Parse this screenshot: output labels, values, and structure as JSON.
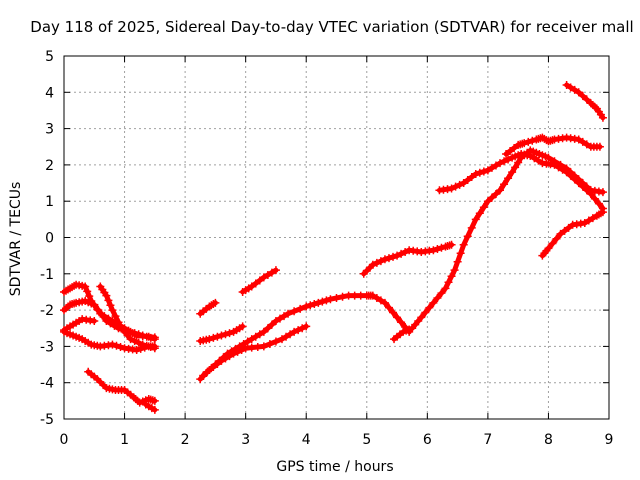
{
  "chart_data": {
    "type": "scatter",
    "title": "Day 118 of 2025, Sidereal Day-to-day VTEC variation (SDTVAR) for receiver mall",
    "xlabel": "GPS time / hours",
    "ylabel": "SDTVAR / TECUs",
    "xlim": [
      0,
      9
    ],
    "ylim": [
      -5,
      5
    ],
    "x_ticks": [
      "0",
      "1",
      "2",
      "3",
      "4",
      "5",
      "6",
      "7",
      "8",
      "9"
    ],
    "y_ticks": [
      "-5",
      "-4",
      "-3",
      "-2",
      "-1",
      "0",
      "1",
      "2",
      "3",
      "4",
      "5"
    ],
    "grid": true,
    "marker": "plus",
    "color": "#ff0000",
    "series": [
      {
        "points": [
          [
            0.0,
            -1.5
          ],
          [
            0.1,
            -1.4
          ],
          [
            0.2,
            -1.3
          ],
          [
            0.35,
            -1.35
          ],
          [
            0.45,
            -1.75
          ],
          [
            0.6,
            -2.1
          ],
          [
            0.8,
            -2.3
          ],
          [
            1.0,
            -2.5
          ],
          [
            1.2,
            -2.7
          ],
          [
            1.5,
            -2.75
          ]
        ]
      },
      {
        "points": [
          [
            0.0,
            -2.0
          ],
          [
            0.1,
            -1.85
          ],
          [
            0.2,
            -1.8
          ],
          [
            0.35,
            -1.75
          ],
          [
            0.5,
            -1.85
          ],
          [
            0.7,
            -2.3
          ],
          [
            0.9,
            -2.5
          ],
          [
            1.1,
            -2.6
          ],
          [
            1.3,
            -2.7
          ],
          [
            1.5,
            -2.8
          ]
        ]
      },
      {
        "points": [
          [
            0.0,
            -2.55
          ],
          [
            0.15,
            -2.4
          ],
          [
            0.3,
            -2.25
          ],
          [
            0.5,
            -2.3
          ]
        ]
      },
      {
        "points": [
          [
            0.0,
            -2.6
          ],
          [
            0.15,
            -2.7
          ],
          [
            0.3,
            -2.8
          ],
          [
            0.45,
            -2.95
          ],
          [
            0.6,
            -3.0
          ],
          [
            0.8,
            -2.95
          ],
          [
            1.0,
            -3.05
          ],
          [
            1.2,
            -3.1
          ],
          [
            1.4,
            -3.0
          ],
          [
            1.5,
            -3.0
          ]
        ]
      },
      {
        "points": [
          [
            0.6,
            -1.35
          ],
          [
            0.7,
            -1.6
          ],
          [
            0.8,
            -2.0
          ],
          [
            0.95,
            -2.5
          ],
          [
            1.1,
            -2.8
          ],
          [
            1.3,
            -2.95
          ],
          [
            1.5,
            -3.05
          ]
        ]
      },
      {
        "points": [
          [
            0.4,
            -3.7
          ],
          [
            0.55,
            -3.9
          ],
          [
            0.7,
            -4.15
          ],
          [
            0.85,
            -4.2
          ],
          [
            1.0,
            -4.2
          ],
          [
            1.15,
            -4.4
          ],
          [
            1.25,
            -4.55
          ],
          [
            1.4,
            -4.45
          ],
          [
            1.5,
            -4.5
          ]
        ]
      },
      {
        "points": [
          [
            1.35,
            -4.6
          ],
          [
            1.5,
            -4.75
          ]
        ]
      },
      {
        "points": [
          [
            2.25,
            -2.1
          ],
          [
            2.4,
            -1.9
          ],
          [
            2.5,
            -1.8
          ]
        ]
      },
      {
        "points": [
          [
            2.25,
            -2.85
          ],
          [
            2.4,
            -2.8
          ],
          [
            2.6,
            -2.7
          ],
          [
            2.8,
            -2.6
          ],
          [
            2.95,
            -2.45
          ]
        ]
      },
      {
        "points": [
          [
            2.25,
            -3.9
          ],
          [
            2.4,
            -3.65
          ],
          [
            2.6,
            -3.4
          ],
          [
            2.8,
            -3.2
          ],
          [
            3.0,
            -3.05
          ],
          [
            3.3,
            -3.0
          ],
          [
            3.6,
            -2.8
          ],
          [
            3.8,
            -2.6
          ],
          [
            4.0,
            -2.45
          ]
        ]
      },
      {
        "points": [
          [
            2.3,
            -3.8
          ],
          [
            2.5,
            -3.5
          ],
          [
            2.7,
            -3.2
          ],
          [
            2.9,
            -3.0
          ],
          [
            3.1,
            -2.8
          ],
          [
            3.3,
            -2.6
          ],
          [
            3.5,
            -2.3
          ],
          [
            3.7,
            -2.1
          ],
          [
            4.0,
            -1.9
          ],
          [
            4.2,
            -1.8
          ],
          [
            4.4,
            -1.7
          ],
          [
            4.7,
            -1.6
          ],
          [
            5.0,
            -1.6
          ],
          [
            5.1,
            -1.6
          ],
          [
            5.3,
            -1.8
          ],
          [
            5.5,
            -2.2
          ],
          [
            5.7,
            -2.6
          ]
        ]
      },
      {
        "points": [
          [
            2.95,
            -1.5
          ],
          [
            3.1,
            -1.35
          ],
          [
            3.3,
            -1.1
          ],
          [
            3.5,
            -0.9
          ]
        ]
      },
      {
        "points": [
          [
            4.95,
            -1.0
          ],
          [
            5.1,
            -0.75
          ],
          [
            5.3,
            -0.6
          ],
          [
            5.5,
            -0.5
          ],
          [
            5.7,
            -0.35
          ],
          [
            5.9,
            -0.4
          ],
          [
            6.1,
            -0.35
          ],
          [
            6.3,
            -0.25
          ],
          [
            6.4,
            -0.2
          ]
        ]
      },
      {
        "points": [
          [
            5.45,
            -2.8
          ],
          [
            5.6,
            -2.6
          ],
          [
            5.75,
            -2.5
          ],
          [
            5.9,
            -2.2
          ],
          [
            6.1,
            -1.8
          ],
          [
            6.3,
            -1.4
          ],
          [
            6.45,
            -0.9
          ],
          [
            6.6,
            -0.2
          ],
          [
            6.8,
            0.5
          ],
          [
            7.0,
            1.0
          ],
          [
            7.2,
            1.3
          ],
          [
            7.4,
            1.8
          ],
          [
            7.55,
            2.2
          ],
          [
            7.7,
            2.4
          ],
          [
            7.85,
            2.3
          ],
          [
            8.0,
            2.2
          ],
          [
            8.3,
            1.9
          ],
          [
            8.5,
            1.6
          ],
          [
            8.7,
            1.3
          ],
          [
            8.9,
            1.25
          ]
        ]
      },
      {
        "points": [
          [
            6.2,
            1.3
          ],
          [
            6.4,
            1.35
          ],
          [
            6.6,
            1.5
          ],
          [
            6.8,
            1.75
          ],
          [
            7.0,
            1.85
          ],
          [
            7.2,
            2.05
          ],
          [
            7.4,
            2.2
          ],
          [
            7.55,
            2.3
          ],
          [
            7.7,
            2.25
          ],
          [
            7.9,
            2.05
          ],
          [
            8.1,
            2.0
          ],
          [
            8.3,
            1.8
          ],
          [
            8.5,
            1.5
          ],
          [
            8.7,
            1.2
          ],
          [
            8.9,
            0.8
          ]
        ]
      },
      {
        "points": [
          [
            7.3,
            2.3
          ],
          [
            7.5,
            2.55
          ],
          [
            7.6,
            2.6
          ],
          [
            7.8,
            2.7
          ],
          [
            7.9,
            2.75
          ],
          [
            8.0,
            2.65
          ],
          [
            8.1,
            2.7
          ],
          [
            8.3,
            2.75
          ],
          [
            8.5,
            2.7
          ],
          [
            8.7,
            2.5
          ],
          [
            8.85,
            2.5
          ]
        ]
      },
      {
        "points": [
          [
            7.9,
            -0.5
          ],
          [
            8.0,
            -0.3
          ],
          [
            8.2,
            0.1
          ],
          [
            8.4,
            0.35
          ],
          [
            8.6,
            0.4
          ],
          [
            8.8,
            0.6
          ],
          [
            8.9,
            0.7
          ]
        ]
      },
      {
        "points": [
          [
            8.3,
            4.2
          ],
          [
            8.5,
            4.0
          ],
          [
            8.7,
            3.7
          ],
          [
            8.8,
            3.55
          ],
          [
            8.9,
            3.3
          ]
        ]
      }
    ]
  }
}
